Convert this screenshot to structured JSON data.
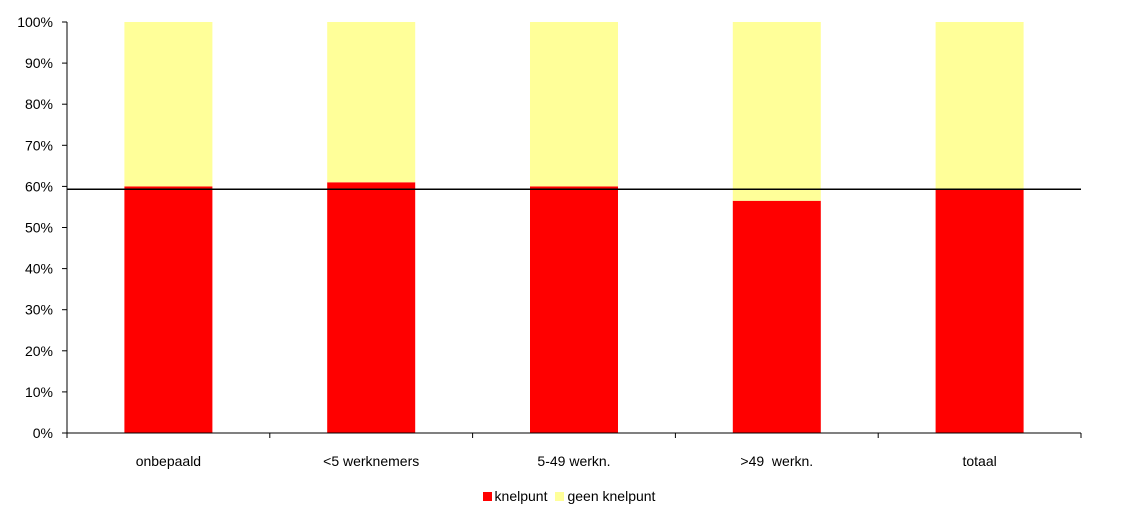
{
  "chart_data": {
    "type": "bar",
    "stacked": true,
    "categories": [
      "onbepaald",
      "<5 werknemers",
      "5-49 werkn.",
      ">49  werkn.",
      "totaal"
    ],
    "series": [
      {
        "name": "knelpunt",
        "color": "#ff0000",
        "values": [
          60,
          61,
          60,
          56.5,
          59.3
        ]
      },
      {
        "name": "geen knelpunt",
        "color": "#ffff99",
        "values": [
          40,
          39,
          40,
          43.5,
          40.7
        ]
      }
    ],
    "y_tick_labels": [
      "0%",
      "10%",
      "20%",
      "30%",
      "40%",
      "50%",
      "60%",
      "70%",
      "80%",
      "90%",
      "100%"
    ],
    "ylim": [
      0,
      100
    ],
    "reference_line": 59.3,
    "legend_position": "bottom",
    "grid": false
  }
}
